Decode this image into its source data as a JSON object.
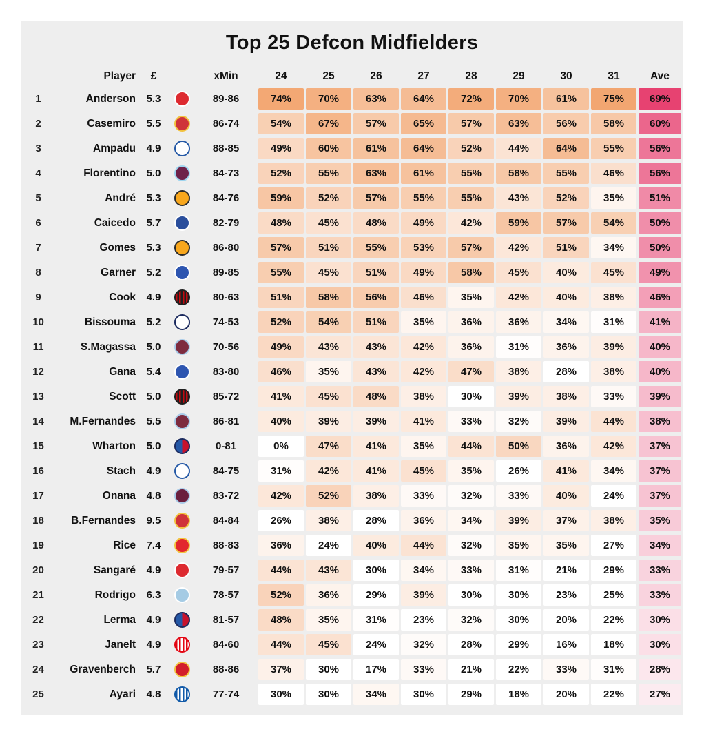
{
  "title": "Top 25 Defcon Midfielders",
  "columns": {
    "player": "Player",
    "price": "£",
    "xmin": "xMin",
    "gameweeks": [
      "24",
      "25",
      "26",
      "27",
      "28",
      "29",
      "30",
      "31"
    ],
    "ave": "Ave"
  },
  "heatmap": {
    "panel_bg": "#eeeeee",
    "cell_base": "#ffffff",
    "gw_high_color": "#f2a46e",
    "gw_min": 30,
    "gw_max": 76,
    "ave_high_color": "#e63e6e",
    "ave_min": 22,
    "ave_max": 70
  },
  "chart_data": {
    "type": "heatmap",
    "title": "Top 25 Defcon Midfielders",
    "columns": [
      "Player",
      "£",
      "Club",
      "xMin",
      "24",
      "25",
      "26",
      "27",
      "28",
      "29",
      "30",
      "31",
      "Ave"
    ],
    "rows": [
      {
        "rank": 1,
        "player": "Anderson",
        "price": "5.3",
        "club": "nottingham-forest",
        "xmin": "89-86",
        "gws": [
          74,
          70,
          63,
          64,
          72,
          70,
          61,
          75
        ],
        "ave": 69
      },
      {
        "rank": 2,
        "player": "Casemiro",
        "price": "5.5",
        "club": "man-utd",
        "xmin": "86-74",
        "gws": [
          54,
          67,
          57,
          65,
          57,
          63,
          56,
          58
        ],
        "ave": 60
      },
      {
        "rank": 3,
        "player": "Ampadu",
        "price": "4.9",
        "club": "leeds",
        "xmin": "88-85",
        "gws": [
          49,
          60,
          61,
          64,
          52,
          44,
          64,
          55
        ],
        "ave": 56
      },
      {
        "rank": 4,
        "player": "Florentino",
        "price": "5.0",
        "club": "burnley",
        "xmin": "84-73",
        "gws": [
          52,
          55,
          63,
          61,
          55,
          58,
          55,
          46
        ],
        "ave": 56
      },
      {
        "rank": 5,
        "player": "André",
        "price": "5.3",
        "club": "wolves",
        "xmin": "84-76",
        "gws": [
          59,
          52,
          57,
          55,
          55,
          43,
          52,
          35
        ],
        "ave": 51
      },
      {
        "rank": 6,
        "player": "Caicedo",
        "price": "5.7",
        "club": "chelsea",
        "xmin": "82-79",
        "gws": [
          48,
          45,
          48,
          49,
          42,
          59,
          57,
          54
        ],
        "ave": 50
      },
      {
        "rank": 7,
        "player": "Gomes",
        "price": "5.3",
        "club": "wolves",
        "xmin": "86-80",
        "gws": [
          57,
          51,
          55,
          53,
          57,
          42,
          51,
          34
        ],
        "ave": 50
      },
      {
        "rank": 8,
        "player": "Garner",
        "price": "5.2",
        "club": "everton",
        "xmin": "89-85",
        "gws": [
          55,
          45,
          51,
          49,
          58,
          45,
          40,
          45
        ],
        "ave": 49
      },
      {
        "rank": 9,
        "player": "Cook",
        "price": "4.9",
        "club": "bournemouth",
        "xmin": "80-63",
        "gws": [
          51,
          58,
          56,
          46,
          35,
          42,
          40,
          38
        ],
        "ave": 46
      },
      {
        "rank": 10,
        "player": "Bissouma",
        "price": "5.2",
        "club": "tottenham",
        "xmin": "74-53",
        "gws": [
          52,
          54,
          51,
          35,
          36,
          36,
          34,
          31
        ],
        "ave": 41
      },
      {
        "rank": 11,
        "player": "S.Magassa",
        "price": "5.0",
        "club": "west-ham",
        "xmin": "70-56",
        "gws": [
          49,
          43,
          43,
          42,
          36,
          31,
          36,
          39
        ],
        "ave": 40
      },
      {
        "rank": 12,
        "player": "Gana",
        "price": "5.4",
        "club": "everton",
        "xmin": "83-80",
        "gws": [
          46,
          35,
          43,
          42,
          47,
          38,
          28,
          38
        ],
        "ave": 40
      },
      {
        "rank": 13,
        "player": "Scott",
        "price": "5.0",
        "club": "bournemouth",
        "xmin": "85-72",
        "gws": [
          41,
          45,
          48,
          38,
          30,
          39,
          38,
          33
        ],
        "ave": 39
      },
      {
        "rank": 14,
        "player": "M.Fernandes",
        "price": "5.5",
        "club": "west-ham",
        "xmin": "86-81",
        "gws": [
          40,
          39,
          39,
          41,
          33,
          32,
          39,
          44
        ],
        "ave": 38
      },
      {
        "rank": 15,
        "player": "Wharton",
        "price": "5.0",
        "club": "crystal-palace",
        "xmin": "0-81",
        "gws": [
          0,
          47,
          41,
          35,
          44,
          50,
          36,
          42
        ],
        "ave": 37
      },
      {
        "rank": 16,
        "player": "Stach",
        "price": "4.9",
        "club": "leeds",
        "xmin": "84-75",
        "gws": [
          31,
          42,
          41,
          45,
          35,
          26,
          41,
          34
        ],
        "ave": 37
      },
      {
        "rank": 17,
        "player": "Onana",
        "price": "4.8",
        "club": "aston-villa",
        "xmin": "83-72",
        "gws": [
          42,
          52,
          38,
          33,
          32,
          33,
          40,
          24
        ],
        "ave": 37
      },
      {
        "rank": 18,
        "player": "B.Fernandes",
        "price": "9.5",
        "club": "man-utd",
        "xmin": "84-84",
        "gws": [
          26,
          38,
          28,
          36,
          34,
          39,
          37,
          38
        ],
        "ave": 35
      },
      {
        "rank": 19,
        "player": "Rice",
        "price": "7.4",
        "club": "arsenal",
        "xmin": "88-83",
        "gws": [
          36,
          24,
          40,
          44,
          32,
          35,
          35,
          27
        ],
        "ave": 34
      },
      {
        "rank": 20,
        "player": "Sangaré",
        "price": "4.9",
        "club": "nottingham-forest",
        "xmin": "79-57",
        "gws": [
          44,
          43,
          30,
          34,
          33,
          31,
          21,
          29
        ],
        "ave": 33
      },
      {
        "rank": 21,
        "player": "Rodrigo",
        "price": "6.3",
        "club": "man-city",
        "xmin": "78-57",
        "gws": [
          52,
          36,
          29,
          39,
          30,
          30,
          23,
          25
        ],
        "ave": 33
      },
      {
        "rank": 22,
        "player": "Lerma",
        "price": "4.9",
        "club": "crystal-palace",
        "xmin": "81-57",
        "gws": [
          48,
          35,
          31,
          23,
          32,
          30,
          20,
          22
        ],
        "ave": 30
      },
      {
        "rank": 23,
        "player": "Janelt",
        "price": "4.9",
        "club": "brentford",
        "xmin": "84-60",
        "gws": [
          44,
          45,
          24,
          32,
          28,
          29,
          16,
          18
        ],
        "ave": 30
      },
      {
        "rank": 24,
        "player": "Gravenberch",
        "price": "5.7",
        "club": "liverpool",
        "xmin": "88-86",
        "gws": [
          37,
          30,
          17,
          33,
          21,
          22,
          33,
          31
        ],
        "ave": 28
      },
      {
        "rank": 25,
        "player": "Ayari",
        "price": "4.8",
        "club": "brighton",
        "xmin": "77-74",
        "gws": [
          30,
          30,
          34,
          30,
          29,
          18,
          20,
          22
        ],
        "ave": 27
      }
    ]
  },
  "badges": {
    "nottingham-forest": {
      "pattern": "solid",
      "primary": "#dd2a30",
      "secondary": "#ffffff",
      "ring": "#ffffff"
    },
    "man-utd": {
      "pattern": "solid",
      "primary": "#cf3339",
      "secondary": "#f2c23e",
      "ring": "#f2c23e"
    },
    "leeds": {
      "pattern": "solid",
      "primary": "#ffffff",
      "secondary": "#2559a6",
      "ring": "#2559a6"
    },
    "burnley": {
      "pattern": "solid",
      "primary": "#6d2149",
      "secondary": "#9fd5ef",
      "ring": "#9fd5ef"
    },
    "wolves": {
      "pattern": "solid",
      "primary": "#f8a71d",
      "secondary": "#2a2a2a",
      "ring": "#2a2a2a"
    },
    "chelsea": {
      "pattern": "solid",
      "primary": "#2a4e9c",
      "secondary": "#ffffff",
      "ring": "#ffffff"
    },
    "everton": {
      "pattern": "solid",
      "primary": "#2d55b0",
      "secondary": "#ffffff",
      "ring": "#ffffff"
    },
    "bournemouth": {
      "pattern": "stripes",
      "primary": "#c20b10",
      "secondary": "#1f1f1f",
      "ring": "#1f1f1f"
    },
    "tottenham": {
      "pattern": "solid",
      "primary": "#ffffff",
      "secondary": "#1b2a5e",
      "ring": "#1b2a5e"
    },
    "west-ham": {
      "pattern": "solid",
      "primary": "#7d2b3f",
      "secondary": "#a9cbe8",
      "ring": "#a9cbe8"
    },
    "crystal-palace": {
      "pattern": "split",
      "primary": "#2458a6",
      "secondary": "#c8122c",
      "ring": "#1b2a5e"
    },
    "aston-villa": {
      "pattern": "solid",
      "primary": "#6a1f3e",
      "secondary": "#a9cbe8",
      "ring": "#a9cbe8"
    },
    "arsenal": {
      "pattern": "solid",
      "primary": "#e2262d",
      "secondary": "#f2c23e",
      "ring": "#f2c23e"
    },
    "man-city": {
      "pattern": "solid",
      "primary": "#a5cbe4",
      "secondary": "#ffffff",
      "ring": "#ffffff"
    },
    "brentford": {
      "pattern": "stripes",
      "primary": "#e30613",
      "secondary": "#ffffff",
      "ring": "#e30613"
    },
    "liverpool": {
      "pattern": "solid",
      "primary": "#d21e2b",
      "secondary": "#f2c23e",
      "ring": "#f2c23e"
    },
    "brighton": {
      "pattern": "stripes",
      "primary": "#1059a8",
      "secondary": "#ffffff",
      "ring": "#1059a8"
    }
  }
}
